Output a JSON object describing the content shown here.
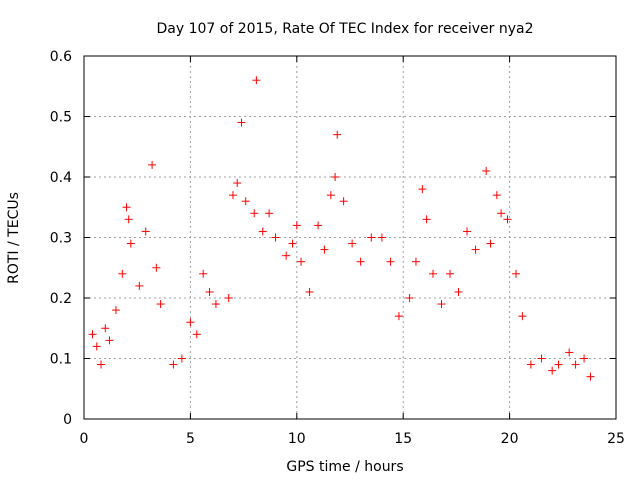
{
  "chart_data": {
    "type": "scatter",
    "title": "Day 107 of 2015, Rate Of TEC Index for receiver nya2",
    "xlabel": "GPS time / hours",
    "ylabel": "ROTI / TECUs",
    "xlim": [
      0,
      25
    ],
    "ylim": [
      0,
      0.6
    ],
    "x_ticks": [
      "0",
      "5",
      "10",
      "15",
      "20",
      "25"
    ],
    "y_ticks": [
      "0",
      "0.1",
      "0.2",
      "0.3",
      "0.4",
      "0.5",
      "0.6"
    ],
    "grid": true,
    "marker": "+",
    "series": [
      {
        "color": "#ff0000",
        "points": [
          [
            0.4,
            0.14
          ],
          [
            0.6,
            0.12
          ],
          [
            0.8,
            0.09
          ],
          [
            1.0,
            0.15
          ],
          [
            1.2,
            0.13
          ],
          [
            1.5,
            0.18
          ],
          [
            1.8,
            0.24
          ],
          [
            2.0,
            0.35
          ],
          [
            2.1,
            0.33
          ],
          [
            2.2,
            0.29
          ],
          [
            2.6,
            0.22
          ],
          [
            2.9,
            0.31
          ],
          [
            3.2,
            0.42
          ],
          [
            3.4,
            0.25
          ],
          [
            3.6,
            0.19
          ],
          [
            4.2,
            0.09
          ],
          [
            4.6,
            0.1
          ],
          [
            5.0,
            0.16
          ],
          [
            5.3,
            0.14
          ],
          [
            5.6,
            0.24
          ],
          [
            5.9,
            0.21
          ],
          [
            6.2,
            0.19
          ],
          [
            6.8,
            0.2
          ],
          [
            7.0,
            0.37
          ],
          [
            7.2,
            0.39
          ],
          [
            7.4,
            0.49
          ],
          [
            7.6,
            0.36
          ],
          [
            8.0,
            0.34
          ],
          [
            8.1,
            0.56
          ],
          [
            8.4,
            0.31
          ],
          [
            8.7,
            0.34
          ],
          [
            9.0,
            0.3
          ],
          [
            9.5,
            0.27
          ],
          [
            9.8,
            0.29
          ],
          [
            10.0,
            0.32
          ],
          [
            10.2,
            0.26
          ],
          [
            10.6,
            0.21
          ],
          [
            11.0,
            0.32
          ],
          [
            11.3,
            0.28
          ],
          [
            11.6,
            0.37
          ],
          [
            11.8,
            0.4
          ],
          [
            11.9,
            0.47
          ],
          [
            12.2,
            0.36
          ],
          [
            12.6,
            0.29
          ],
          [
            13.0,
            0.26
          ],
          [
            13.5,
            0.3
          ],
          [
            14.0,
            0.3
          ],
          [
            14.4,
            0.26
          ],
          [
            14.8,
            0.17
          ],
          [
            15.3,
            0.2
          ],
          [
            15.6,
            0.26
          ],
          [
            15.9,
            0.38
          ],
          [
            16.1,
            0.33
          ],
          [
            16.4,
            0.24
          ],
          [
            16.8,
            0.19
          ],
          [
            17.2,
            0.24
          ],
          [
            17.6,
            0.21
          ],
          [
            18.0,
            0.31
          ],
          [
            18.4,
            0.28
          ],
          [
            18.9,
            0.41
          ],
          [
            19.1,
            0.29
          ],
          [
            19.4,
            0.37
          ],
          [
            19.6,
            0.34
          ],
          [
            19.9,
            0.33
          ],
          [
            20.3,
            0.24
          ],
          [
            20.6,
            0.17
          ],
          [
            21.0,
            0.09
          ],
          [
            21.5,
            0.1
          ],
          [
            22.0,
            0.08
          ],
          [
            22.3,
            0.09
          ],
          [
            22.8,
            0.11
          ],
          [
            23.1,
            0.09
          ],
          [
            23.5,
            0.1
          ],
          [
            23.8,
            0.07
          ]
        ]
      }
    ]
  }
}
